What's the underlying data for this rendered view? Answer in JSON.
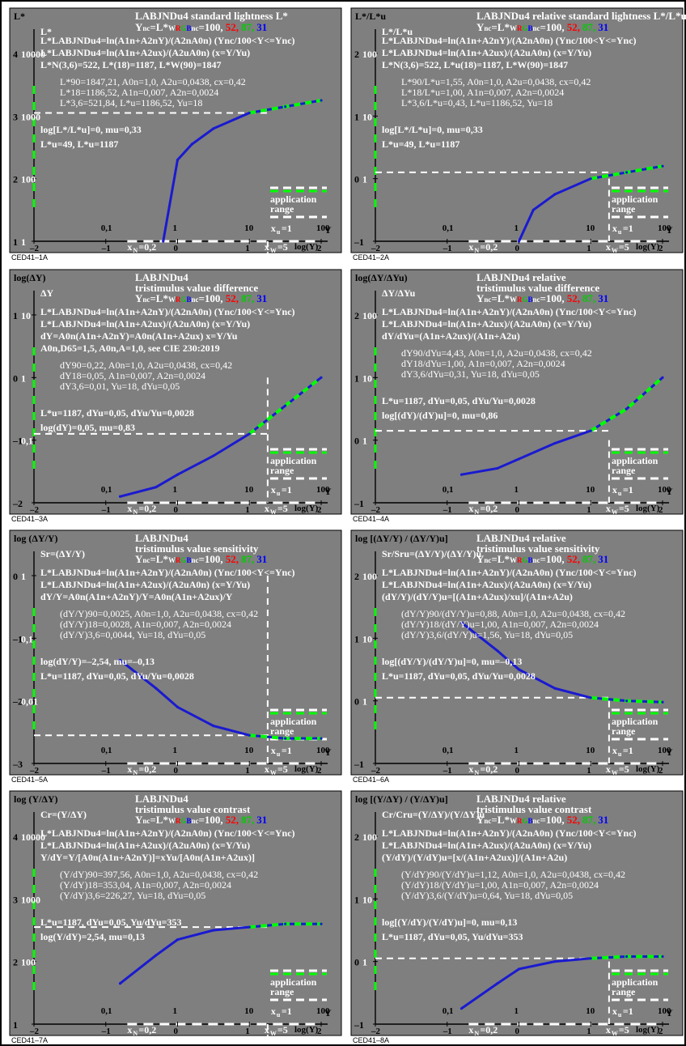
{
  "colors": {
    "panel_bg": "#7f7f7f",
    "white": "#ffffff",
    "black": "#000000",
    "red": "#ff0000",
    "green": "#00cc00",
    "blue": "#0000ff",
    "app_green": "#00ff00",
    "curve_blue": "#1a1ad0"
  },
  "common": {
    "rgb_prefix": "Y",
    "rgb_prefix_sub": "nc",
    "rgb_eq": "=L*",
    "rgb_sub_w": "W",
    "rgb_r": "R",
    "rgb_g": "G",
    "rgb_b": "B",
    "rgb_nc": "nc",
    "rgb_val": "=100,",
    "val_r": "52,",
    "val_g": "87,",
    "val_b": "31",
    "app1": "application",
    "app2": "range",
    "xu": "x",
    "xu_sub": "u",
    "xu_val": "=1",
    "xn": "x",
    "xn_sub": "N",
    "xn_val": "=0,2",
    "xw": "x",
    "xw_sub": "W",
    "xw_val": "=5",
    "y_axis": "Y",
    "logy": "log(Y)",
    "x_ticks": [
      "–2",
      "–1",
      "0",
      "1",
      "2"
    ],
    "top_ticks": [
      "0,1",
      "1",
      "10",
      "100"
    ]
  },
  "panels": [
    {
      "id": "CED41-1A",
      "code": "CED41–1A",
      "ylab_outer": "L*",
      "ylab_inner": "L*",
      "title1": "LABJNDu4 standard lightness L*",
      "title2": "",
      "y_ticks_outer": [
        "4",
        "3",
        "2",
        "1"
      ],
      "y_ticks_inner": [
        "10000",
        "1000",
        "100",
        "1"
      ],
      "formulas": [
        "L*LABJNDu4=ln(A1n+A2nY)/(A2nA0n)   (Ync/100<Y<=Ync)",
        "L*LABJNDu4=ln(A1n+A2ux)/(A2uA0n)   (x=Y/Yu)",
        "L*N(3,6)=522, L*(18)=1187, L*W(90)=1847"
      ],
      "notes": [
        "L*90=1847,21, A0n=1,0, A2u=0,0438, cx=0,42",
        "L*18=1186,52, A1n=0,007, A2n=0,0024",
        "L*3,6=521,84, L*u=1186,52, Yu=18"
      ],
      "extra1": "log[L*/L*u]=0, mu=0,33",
      "extra2": "L*u=49, L*u=1187"
    },
    {
      "id": "CED41-2A",
      "code": "CED41–2A",
      "ylab_outer": "L*/L*u",
      "ylab_inner": "L*/L*u",
      "title1": "LABJNDu4 relative standard lightness L*/L*u",
      "title2": "",
      "y_ticks_outer": [
        "2",
        "1",
        "0",
        "–1"
      ],
      "y_ticks_inner": [
        "100",
        "10",
        "1",
        ""
      ],
      "formulas": [
        "L*LABJNDu4=ln(A1n+A2nY)/(A2nA0n)   (Ync/100<Y<=Ync)",
        "L*LABJNDu4=ln(A1n+A2ux)/(A2uA0n)   (x=Y/Yu)",
        "L*N(3,6)=522, L*u(18)=1187, L*W(90)=1847"
      ],
      "notes": [
        "L*90/L*u=1,55, A0n=1,0, A2u=0,0438, cx=0,42",
        "L*18/L*u=1,00, A1n=0,007, A2n=0,0024",
        "L*3,6/L*u=0,43, L*u=1186,52, Yu=18"
      ],
      "extra1": "log[L*/L*u]=0, mu=0,33",
      "extra2": "L*u=49, L*u=1187"
    },
    {
      "id": "CED41-3A",
      "code": "CED41–3A",
      "ylab_outer": "log(ΔY)",
      "ylab_inner": "ΔY",
      "title1": "LABJNDu4",
      "title2": "tristimulus value difference",
      "y_ticks_outer": [
        "1",
        "0",
        "–1",
        "–2"
      ],
      "y_ticks_inner": [
        "10",
        "1",
        "0,1",
        ""
      ],
      "formulas": [
        "L*LABJNDu4=ln(A1n+A2nY)/(A2nA0n)   (Ync/100<Y<=Ync)",
        "L*LABJNDu4=ln(A1n+A2ux)/(A2uA0n)   (x=Y/Yu)",
        "dY=A0n(A1n+A2nY)=A0n(A1n+A2ux)   x=Y/Yu",
        "A0n,D65=1,5, A0n,A=1,0, see CIE 230:2019"
      ],
      "notes": [
        "dY90=0,22, A0n=1,0, A2u=0,0438, cx=0,42",
        "dY18=0,05, A1n=0,007, A2n=0,0024",
        "dY3,6=0,01, Yu=18, dYu=0,05"
      ],
      "extra1": "L*u=1187, dYu=0,05, dYu/Yu=0,0028",
      "extra2": "log(dY)=0,05, mu=0,83"
    },
    {
      "id": "CED41-4A",
      "code": "CED41–4A",
      "ylab_outer": "log(ΔY/ΔYu)",
      "ylab_inner": "ΔY/ΔYu",
      "title1": "LABJNDu4 relative",
      "title2": "tristimulus value difference",
      "y_ticks_outer": [
        "2",
        "1",
        "0",
        "–1"
      ],
      "y_ticks_inner": [
        "100",
        "10",
        "1",
        ""
      ],
      "formulas": [
        "L*LABJNDu4=ln(A1n+A2nY)/(A2nA0n)   (Ync/100<Y<=Ync)",
        "L*LABJNDu4=ln(A1n+A2ux)/(A2uA0n)   (x=Y/Yu)",
        "dY/dYu=(A1n+A2ux)/(A1n+A2u)"
      ],
      "notes": [
        "dY90/dYu=4,43, A0n=1,0, A2u=0,0438, cx=0,42",
        "dY18/dYu=1,00, A1n=0,007, A2n=0,0024",
        "dY3,6/dYu=0,31, Yu=18, dYu=0,05"
      ],
      "extra1": "L*u=1187, dYu=0,05, dYu/Yu=0,0028",
      "extra2": "log[(dY)/(dY)u]=0, mu=0,86"
    },
    {
      "id": "CED41-5A",
      "code": "CED41–5A",
      "ylab_outer": "log (ΔY/Y)",
      "ylab_inner": "Sr=(ΔY/Y)",
      "title1": "LABJNDu4",
      "title2": "tristimulus value sensitivity",
      "y_ticks_outer": [
        "0",
        "–1",
        "–2",
        "–3"
      ],
      "y_ticks_inner": [
        "1",
        "0,1",
        "0,01",
        ""
      ],
      "formulas": [
        "L*LABJNDu4=ln(A1n+A2nY)/(A2nA0n)   (Ync/100<Y<=Ync)",
        "L*LABJNDu4=ln(A1n+A2ux)/(A2uA0n)   (x=Y/Yu)",
        "dY/Y=A0n(A1n+A2nY)/Y=A0n(A1n+A2ux)/Y"
      ],
      "notes": [
        "(dY/Y)90=0,0025, A0n=1,0, A2u=0,0438, cx=0,42",
        "(dY/Y)18=0,0028, A1n=0,007, A2n=0,0024",
        "(dY/Y)3,6=0,0044, Yu=18, dYu=0,05"
      ],
      "extra1": "log(dY/Y)=–2,54, mu=–0,13",
      "extra2": "L*u=1187, dYu=0,05, dYu/Yu=0,0028"
    },
    {
      "id": "CED41-6A",
      "code": "CED41–6A",
      "ylab_outer": "log [(ΔY/Y) / (ΔY/Y)u]",
      "ylab_inner": "Sr/Sru=(ΔY/Y)/(ΔY/Y)u",
      "title1": "LABJNDu4 relative",
      "title2": "tristimulus value sensitivity",
      "y_ticks_outer": [
        "2",
        "1",
        "0",
        "–1"
      ],
      "y_ticks_inner": [
        "100",
        "10",
        "1",
        ""
      ],
      "formulas": [
        "L*LABJNDu4=ln(A1n+A2nY)/(A2nA0n)   (Ync/100<Y<=Ync)",
        "L*LABJNDu4=ln(A1n+A2ux)/(A2uA0n)   (x=Y/Yu)",
        "(dY/Y)/(dY/Y)u=[(A1n+A2ux)/xu]/(A1n+A2u)"
      ],
      "notes": [
        "(dY/Y)90/(dY/Y)u=0,88, A0n=1,0, A2u=0,0438, cx=0,42",
        "(dY/Y)18/(dY/Y)u=1,00, A1n=0,007, A2n=0,0024",
        "(dY/Y)3,6/(dY/Y)u=1,56, Yu=18, dYu=0,05"
      ],
      "extra1": "log[(dY/Y)/(dY/Y)u]=0, mu=–0,13",
      "extra2": "L*u=1187, dYu=0,05, dYu/Yu=0,0028"
    },
    {
      "id": "CED41-7A",
      "code": "CED41–7A",
      "ylab_outer": "log (Y/ΔY)",
      "ylab_inner": "Cr=(Y/ΔY)",
      "title1": "LABJNDu4",
      "title2": "tristimulus value contrast",
      "y_ticks_outer": [
        "4",
        "3",
        "2",
        "1"
      ],
      "y_ticks_inner": [
        "10000",
        "1000",
        "100",
        ""
      ],
      "formulas": [
        "L*LABJNDu4=ln(A1n+A2nY)/(A2nA0n)   (Ync/100<Y<=Ync)",
        "L*LABJNDu4=ln(A1n+A2ux)/(A2uA0n)   (x=Y/Yu)",
        "Y/dY=Y/[A0n(A1n+A2nY)]=xYu/[A0n(A1n+A2ux)]"
      ],
      "notes": [
        "(Y/dY)90=397,56, A0n=1,0, A2u=0,0438, cx=0,42",
        "(Y/dY)18=353,04, A1n=0,007, A2n=0,0024",
        "(Y/dY)3,6=226,27, Yu=18, dYu=0,05"
      ],
      "extra1": "L*u=1187, dYu=0,05, Yu/dYu=353",
      "extra2": "log(Y/dY)=2,54, mu=0,13"
    },
    {
      "id": "CED41-8A",
      "code": "CED41–8A",
      "ylab_outer": "log [(Y/ΔY) / (Y/ΔY)u]",
      "ylab_inner": "Cr/Cru=(Y/ΔY)/(Y/ΔY)u",
      "title1": "LABJNDu4 relative",
      "title2": "tristimulus value contrast",
      "y_ticks_outer": [
        "2",
        "1",
        "0",
        "–1"
      ],
      "y_ticks_inner": [
        "100",
        "10",
        "1",
        ""
      ],
      "formulas": [
        "L*LABJNDu4=ln(A1n+A2nY)/(A2nA0n)   (Ync/100<Y<=Ync)",
        "L*LABJNDu4=ln(A1n+A2ux)/(A2uA0n)   (x=Y/Yu)",
        "(Y/dY)/(Y/dY)u=[x/(A1n+A2ux)]/(A1n+A2u)"
      ],
      "notes": [
        "(Y/dY)90/(Y/dY)u=1,12, A0n=1,0, A2u=0,0438, cx=0,42",
        "(Y/dY)18/(Y/dY)u=1,00, A1n=0,007, A2n=0,0024",
        "(Y/dY)3,6/(Y/dY)u=0,64, Yu=18, dYu=0,05"
      ],
      "extra1": "log[(Y/dY)/(Y/dY)u]=0, mu=0,13",
      "extra2": "L*u=1187, dYu=0,05, Yu/dYu=353"
    }
  ],
  "chart_data": [
    {
      "type": "line",
      "panel": "CED41-1A",
      "xlabel": "log(Y)",
      "x": [
        -0.2,
        0.0,
        0.2,
        0.5,
        1.0,
        1.5,
        2.0
      ],
      "series": [
        {
          "values": [
            1.0,
            2.3,
            2.55,
            2.8,
            3.05,
            3.15,
            3.25
          ]
        }
      ],
      "xlim": [
        -2,
        2
      ],
      "ylim": [
        1,
        4
      ]
    },
    {
      "type": "line",
      "panel": "CED41-2A",
      "xlabel": "log(Y)",
      "x": [
        0.0,
        0.2,
        0.5,
        1.0,
        1.5,
        2.0
      ],
      "series": [
        {
          "values": [
            -1.0,
            -0.5,
            -0.25,
            0.0,
            0.1,
            0.2
          ]
        }
      ],
      "xlim": [
        -2,
        2
      ],
      "ylim": [
        -1,
        2
      ]
    },
    {
      "type": "line",
      "panel": "CED41-3A",
      "xlabel": "log(Y)",
      "x": [
        -0.8,
        -0.3,
        0.0,
        0.5,
        1.0,
        1.5,
        2.0
      ],
      "series": [
        {
          "values": [
            -1.9,
            -1.75,
            -1.55,
            -1.25,
            -0.9,
            -0.45,
            0.0
          ]
        }
      ],
      "xlim": [
        -2,
        2
      ],
      "ylim": [
        -2,
        1
      ]
    },
    {
      "type": "line",
      "panel": "CED41-4A",
      "xlabel": "log(Y)",
      "x": [
        -0.8,
        -0.3,
        0.0,
        0.5,
        1.0,
        1.5,
        2.0
      ],
      "series": [
        {
          "values": [
            -0.55,
            -0.45,
            -0.3,
            -0.05,
            0.15,
            0.5,
            1.0
          ]
        }
      ],
      "xlim": [
        -2,
        2
      ],
      "ylim": [
        -1,
        2
      ]
    },
    {
      "type": "line",
      "panel": "CED41-5A",
      "xlabel": "log(Y)",
      "x": [
        -0.8,
        -0.3,
        0.0,
        0.5,
        1.0,
        1.5,
        2.0
      ],
      "series": [
        {
          "values": [
            -1.35,
            -1.8,
            -2.1,
            -2.4,
            -2.55,
            -2.6,
            -2.6
          ]
        }
      ],
      "xlim": [
        -2,
        2
      ],
      "ylim": [
        -3,
        0
      ]
    },
    {
      "type": "line",
      "panel": "CED41-6A",
      "xlabel": "log(Y)",
      "x": [
        -0.8,
        -0.3,
        0.0,
        0.5,
        1.0,
        1.5,
        2.0
      ],
      "series": [
        {
          "values": [
            1.25,
            0.8,
            0.5,
            0.2,
            0.05,
            0.0,
            -0.02
          ]
        }
      ],
      "xlim": [
        -2,
        2
      ],
      "ylim": [
        -1,
        2
      ]
    },
    {
      "type": "line",
      "panel": "CED41-7A",
      "xlabel": "log(Y)",
      "x": [
        -0.8,
        -0.3,
        0.0,
        0.5,
        1.0,
        1.5,
        2.0
      ],
      "series": [
        {
          "values": [
            1.65,
            2.1,
            2.35,
            2.5,
            2.55,
            2.6,
            2.6
          ]
        }
      ],
      "xlim": [
        -2,
        2
      ],
      "ylim": [
        1,
        4
      ]
    },
    {
      "type": "line",
      "panel": "CED41-8A",
      "xlabel": "log(Y)",
      "x": [
        -0.8,
        -0.3,
        0.0,
        0.5,
        1.0,
        1.5,
        2.0
      ],
      "series": [
        {
          "values": [
            -0.75,
            -0.35,
            -0.12,
            0.0,
            0.05,
            0.08,
            0.08
          ]
        }
      ],
      "xlim": [
        -2,
        2
      ],
      "ylim": [
        -1,
        2
      ]
    }
  ]
}
